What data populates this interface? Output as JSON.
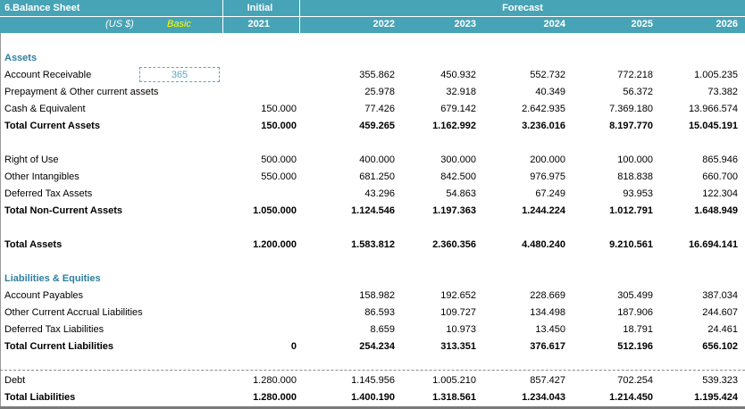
{
  "header": {
    "title": "6.Balance Sheet",
    "currency": "(US $)",
    "scenario": "Basic",
    "initial_label": "Initial",
    "forecast_label": "Forecast",
    "years": [
      "2021",
      "2022",
      "2023",
      "2024",
      "2025",
      "2026"
    ]
  },
  "assets_title": "Assets",
  "dso_input": "365",
  "rows": {
    "ar": {
      "label": "Account Receivable",
      "values": [
        "",
        "355.862",
        "450.932",
        "552.732",
        "772.218",
        "1.005.235"
      ]
    },
    "prep": {
      "label": "Prepayment & Other current assets",
      "values": [
        "",
        "25.978",
        "32.918",
        "40.349",
        "56.372",
        "73.382"
      ]
    },
    "cash": {
      "label": "Cash & Equivalent",
      "values": [
        "150.000",
        "77.426",
        "679.142",
        "2.642.935",
        "7.369.180",
        "13.966.574"
      ]
    },
    "tca": {
      "label": "Total Current Assets",
      "values": [
        "150.000",
        "459.265",
        "1.162.992",
        "3.236.016",
        "8.197.770",
        "15.045.191"
      ]
    },
    "rou": {
      "label": "Right of Use",
      "values": [
        "500.000",
        "400.000",
        "300.000",
        "200.000",
        "100.000",
        "865.946"
      ]
    },
    "oi": {
      "label": "Other Intangibles",
      "values": [
        "550.000",
        "681.250",
        "842.500",
        "976.975",
        "818.838",
        "660.700"
      ]
    },
    "dta": {
      "label": "Deferred Tax Assets",
      "values": [
        "",
        "43.296",
        "54.863",
        "67.249",
        "93.953",
        "122.304"
      ]
    },
    "tnca": {
      "label": "Total Non-Current Assets",
      "values": [
        "1.050.000",
        "1.124.546",
        "1.197.363",
        "1.244.224",
        "1.012.791",
        "1.648.949"
      ]
    },
    "ta": {
      "label": "Total Assets",
      "values": [
        "1.200.000",
        "1.583.812",
        "2.360.356",
        "4.480.240",
        "9.210.561",
        "16.694.141"
      ]
    },
    "ap": {
      "label": "Account Payables",
      "values": [
        "",
        "158.982",
        "192.652",
        "228.669",
        "305.499",
        "387.034"
      ]
    },
    "oca": {
      "label": "Other Current Accrual Liabilities",
      "values": [
        "",
        "86.593",
        "109.727",
        "134.498",
        "187.906",
        "244.607"
      ]
    },
    "dtl": {
      "label": "Deferred Tax Liabilities",
      "values": [
        "",
        "8.659",
        "10.973",
        "13.450",
        "18.791",
        "24.461"
      ]
    },
    "tcl": {
      "label": "Total Current Liabilities",
      "values": [
        "0",
        "254.234",
        "313.351",
        "376.617",
        "512.196",
        "656.102"
      ]
    },
    "debt": {
      "label": "Debt",
      "values": [
        "1.280.000",
        "1.145.956",
        "1.005.210",
        "857.427",
        "702.254",
        "539.323"
      ]
    },
    "tl": {
      "label": "Total Liabilities",
      "values": [
        "1.280.000",
        "1.400.190",
        "1.318.561",
        "1.234.043",
        "1.214.450",
        "1.195.424"
      ]
    }
  },
  "liab_title": "Liabilities & Equities"
}
